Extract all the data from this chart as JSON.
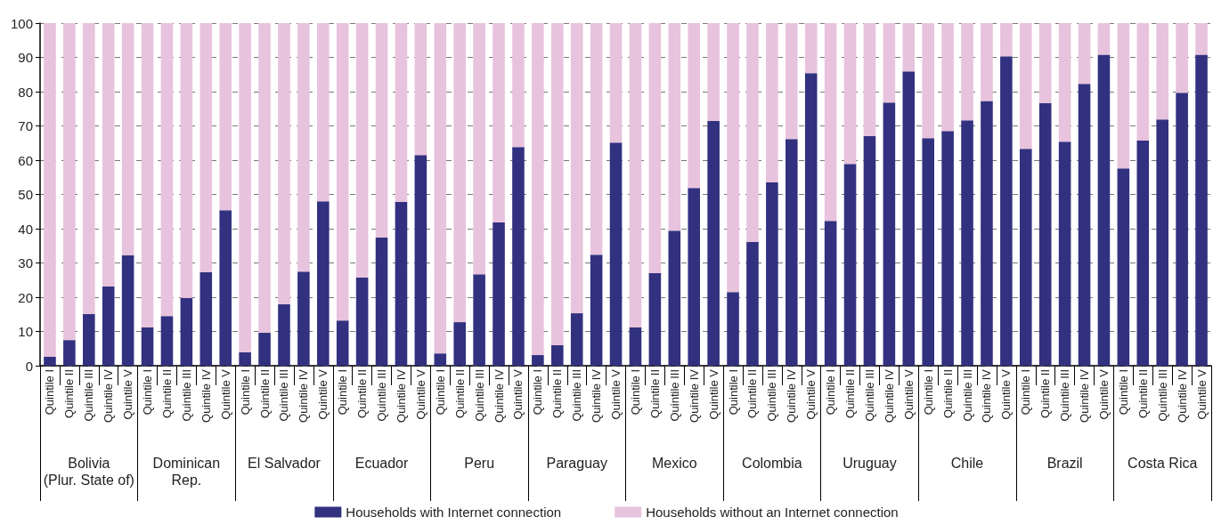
{
  "chart_data": {
    "type": "bar",
    "stacked": true,
    "categories": [
      "Quintile I",
      "Quintile II",
      "Quintile III",
      "Quintile IV",
      "Quintile V",
      "Quintile I",
      "Quintile II",
      "Quintile III",
      "Quintile IV",
      "Quintile V",
      "Quintile I",
      "Quintile II",
      "Quintile III",
      "Quintile IV",
      "Quintile V",
      "Quintile I",
      "Quintile II",
      "Quintile III",
      "Quintile IV",
      "Quintile V",
      "Quintile I",
      "Quintile II",
      "Quintile III",
      "Quintile IV",
      "Quintile V",
      "Quintile I",
      "Quintile II",
      "Quintile III",
      "Quintile IV",
      "Quintile V",
      "Quintile I",
      "Quintile II",
      "Quintile III",
      "Quintile IV",
      "Quintile V",
      "Quintile I",
      "Quintile II",
      "Quintile III",
      "Quintile IV",
      "Quintile V",
      "Quintile I",
      "Quintile II",
      "Quintile III",
      "Quintile IV",
      "Quintile V",
      "Quintile I",
      "Quintile II",
      "Quintile III",
      "Quintile IV",
      "Quintile V",
      "Quintile I",
      "Quintile II",
      "Quintile III",
      "Quintile IV",
      "Quintile V",
      "Quintile I",
      "Quintile II",
      "Quintile III",
      "Quintile IV",
      "Quintile V"
    ],
    "series": [
      {
        "name": "Households with Internet connection",
        "color": "#32317f",
        "values": [
          2.6,
          7.5,
          15.1,
          23.1,
          32.3,
          11.2,
          14.5,
          19.8,
          27.3,
          45.4,
          3.9,
          9.6,
          17.9,
          27.5,
          48.0,
          13.2,
          25.7,
          37.4,
          47.8,
          61.5,
          3.6,
          12.7,
          26.7,
          41.8,
          63.8,
          3.1,
          6.0,
          15.3,
          32.4,
          65.1,
          11.2,
          27.0,
          39.4,
          51.9,
          71.4,
          21.5,
          36.2,
          53.5,
          66.2,
          85.4,
          42.3,
          58.9,
          67.0,
          76.8,
          85.9,
          66.4,
          68.5,
          71.6,
          77.3,
          90.3,
          63.3,
          76.6,
          65.4,
          82.3,
          90.8,
          57.6,
          65.7,
          71.9,
          79.7,
          90.8
        ]
      },
      {
        "name": "Households without an Internet connection",
        "color": "#e8c3dd",
        "values": [
          97.4,
          92.5,
          84.9,
          76.9,
          67.7,
          88.8,
          85.5,
          80.2,
          72.7,
          54.6,
          96.1,
          90.4,
          82.1,
          72.5,
          52.0,
          86.8,
          74.3,
          62.6,
          52.2,
          38.5,
          96.4,
          87.3,
          73.3,
          58.2,
          36.2,
          96.9,
          94.0,
          84.7,
          67.6,
          34.9,
          88.8,
          73.0,
          60.6,
          48.1,
          28.6,
          78.5,
          63.8,
          46.5,
          33.8,
          14.6,
          57.7,
          41.1,
          33.0,
          23.2,
          14.1,
          33.6,
          31.5,
          28.4,
          22.7,
          9.7,
          36.7,
          23.4,
          34.6,
          17.7,
          9.2,
          42.4,
          34.3,
          28.1,
          20.3,
          9.2
        ]
      }
    ],
    "ylim": [
      0,
      100
    ],
    "yticks": [
      0,
      10,
      20,
      30,
      40,
      50,
      60,
      70,
      80,
      90,
      100
    ],
    "grid": "y",
    "legend": "bottom",
    "annotations": [
      "Bolivia\n(Plur. State of)",
      "Dominican\nRep.",
      "El Salvador",
      "Ecuador",
      "Peru",
      "Paraguay",
      "Mexico",
      "Colombia",
      "Uruguay",
      "Chile",
      "Brazil",
      "Costa Rica"
    ]
  }
}
